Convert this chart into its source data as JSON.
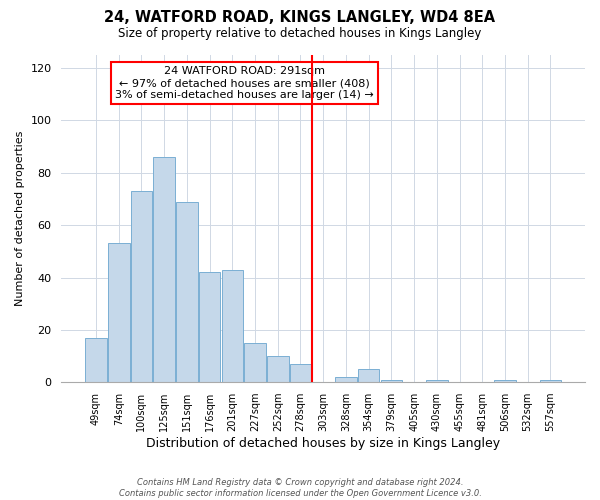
{
  "title": "24, WATFORD ROAD, KINGS LANGLEY, WD4 8EA",
  "subtitle": "Size of property relative to detached houses in Kings Langley",
  "xlabel": "Distribution of detached houses by size in Kings Langley",
  "ylabel": "Number of detached properties",
  "bar_labels": [
    "49sqm",
    "74sqm",
    "100sqm",
    "125sqm",
    "151sqm",
    "176sqm",
    "201sqm",
    "227sqm",
    "252sqm",
    "278sqm",
    "303sqm",
    "328sqm",
    "354sqm",
    "379sqm",
    "405sqm",
    "430sqm",
    "455sqm",
    "481sqm",
    "506sqm",
    "532sqm",
    "557sqm"
  ],
  "bar_heights": [
    17,
    53,
    73,
    86,
    69,
    42,
    43,
    15,
    10,
    7,
    0,
    2,
    5,
    1,
    0,
    1,
    0,
    0,
    1,
    0,
    1
  ],
  "bar_color": "#c5d8ea",
  "bar_edge_color": "#7aafd4",
  "vline_x_index": 9.5,
  "vline_color": "red",
  "annotation_title": "24 WATFORD ROAD: 291sqm",
  "annotation_line1": "← 97% of detached houses are smaller (408)",
  "annotation_line2": "3% of semi-detached houses are larger (14) →",
  "annotation_box_edge": "red",
  "ylim": [
    0,
    125
  ],
  "yticks": [
    0,
    20,
    40,
    60,
    80,
    100,
    120
  ],
  "footer_line1": "Contains HM Land Registry data © Crown copyright and database right 2024.",
  "footer_line2": "Contains public sector information licensed under the Open Government Licence v3.0.",
  "background_color": "#ffffff",
  "plot_background": "#ffffff",
  "grid_color": "#d0d8e4"
}
